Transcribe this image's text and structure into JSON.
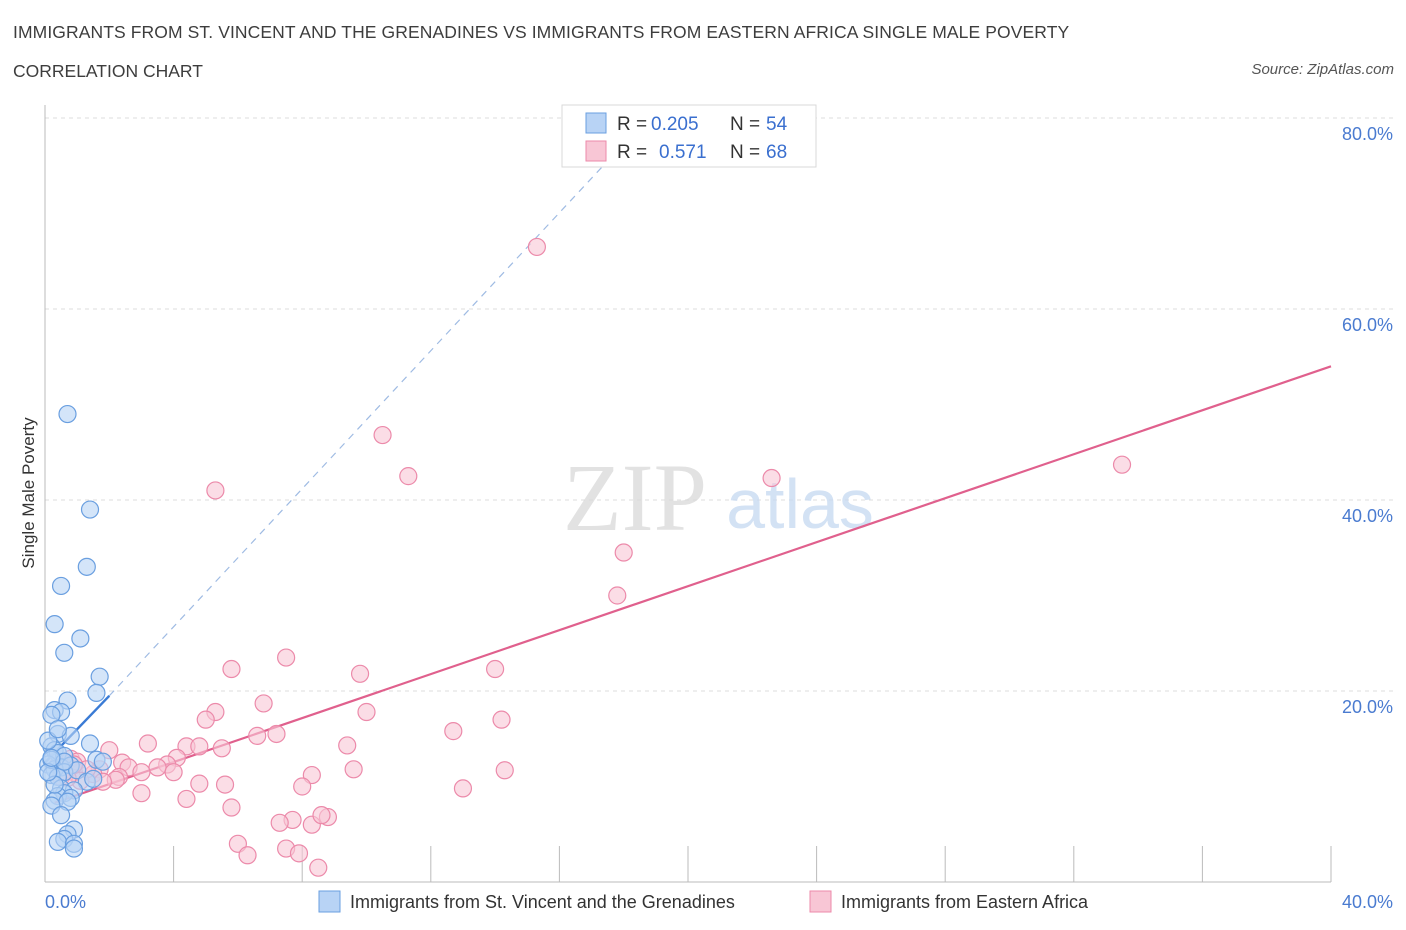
{
  "title": "IMMIGRANTS FROM ST. VINCENT AND THE GRENADINES VS IMMIGRANTS FROM EASTERN AFRICA SINGLE MALE POVERTY",
  "subtitle": "CORRELATION CHART",
  "source": "Source: ZipAtlas.com",
  "watermark": {
    "zip": "ZIP",
    "atlas": "atlas"
  },
  "legend_box": {
    "rows": [
      {
        "r_label": "R =",
        "r_value": "0.205",
        "n_label": "N =",
        "n_value": "54"
      },
      {
        "r_label": "R =",
        "r_value": "0.571",
        "n_label": "N =",
        "n_value": "68"
      }
    ]
  },
  "bottom_legend": [
    {
      "label": "Immigrants from St. Vincent and the Grenadines"
    },
    {
      "label": "Immigrants from Eastern Africa"
    }
  ],
  "colors": {
    "blue_fill": "#b8d3f5",
    "blue_stroke": "#6a9fe0",
    "blue_line": "#3a7bd5",
    "pink_fill": "#f8c6d5",
    "pink_stroke": "#ec8aaa",
    "pink_line": "#e0608d",
    "axis_tick": "#4a7bd0"
  },
  "chart_data": {
    "type": "scatter",
    "ylabel": "Single Male Poverty",
    "xlabel": "",
    "xlim": [
      0,
      40
    ],
    "ylim": [
      0,
      80
    ],
    "x_tick_labels": [
      "0.0%",
      "40.0%"
    ],
    "y_tick_labels": [
      "20.0%",
      "40.0%",
      "60.0%",
      "80.0%"
    ],
    "y_ticks": [
      20,
      40,
      60,
      80
    ],
    "grid": true,
    "series": [
      {
        "name": "Immigrants from St. Vincent and the Grenadines",
        "R": 0.205,
        "N": 54,
        "trend_solid": [
          [
            0,
            12.5
          ],
          [
            2.0,
            19.5
          ]
        ],
        "trend_dashed": [
          [
            2.0,
            19.5
          ],
          [
            17.5,
            75.5
          ]
        ],
        "points": [
          [
            0.7,
            49.0
          ],
          [
            1.4,
            39.0
          ],
          [
            1.3,
            33.0
          ],
          [
            0.5,
            31.0
          ],
          [
            0.3,
            27.0
          ],
          [
            1.1,
            25.5
          ],
          [
            0.6,
            24.0
          ],
          [
            1.7,
            21.5
          ],
          [
            1.6,
            19.8
          ],
          [
            0.7,
            19.0
          ],
          [
            0.3,
            18.0
          ],
          [
            0.5,
            17.8
          ],
          [
            0.2,
            17.5
          ],
          [
            0.4,
            15.5
          ],
          [
            0.8,
            15.3
          ],
          [
            1.4,
            14.5
          ],
          [
            0.2,
            14.2
          ],
          [
            0.3,
            13.8
          ],
          [
            0.4,
            13.5
          ],
          [
            0.6,
            13.2
          ],
          [
            1.6,
            12.8
          ],
          [
            1.8,
            12.6
          ],
          [
            0.1,
            12.3
          ],
          [
            0.5,
            12.0
          ],
          [
            0.8,
            12.2
          ],
          [
            0.3,
            11.8
          ],
          [
            0.6,
            11.5
          ],
          [
            1.0,
            11.7
          ],
          [
            0.2,
            11.2
          ],
          [
            0.4,
            11.0
          ],
          [
            1.3,
            10.5
          ],
          [
            1.5,
            10.8
          ],
          [
            0.5,
            9.8
          ],
          [
            0.9,
            9.6
          ],
          [
            0.6,
            9.3
          ],
          [
            0.4,
            9.0
          ],
          [
            0.8,
            8.8
          ],
          [
            0.3,
            8.5
          ],
          [
            0.7,
            8.4
          ],
          [
            0.2,
            8.0
          ],
          [
            0.5,
            7.0
          ],
          [
            0.9,
            5.5
          ],
          [
            0.7,
            5.0
          ],
          [
            0.6,
            4.5
          ],
          [
            0.4,
            4.2
          ],
          [
            0.9,
            4.0
          ],
          [
            0.9,
            3.5
          ],
          [
            0.1,
            14.8
          ],
          [
            0.2,
            12.8
          ],
          [
            0.3,
            10.2
          ],
          [
            0.6,
            12.6
          ],
          [
            0.1,
            11.5
          ],
          [
            0.2,
            13.0
          ],
          [
            0.4,
            16.0
          ]
        ]
      },
      {
        "name": "Immigrants from Eastern Africa",
        "R": 0.571,
        "N": 68,
        "trend_solid": [
          [
            0.3,
            8.3
          ],
          [
            40,
            54.0
          ]
        ],
        "points": [
          [
            15.3,
            66.5
          ],
          [
            10.5,
            46.8
          ],
          [
            11.3,
            42.5
          ],
          [
            5.3,
            41.0
          ],
          [
            22.6,
            42.3
          ],
          [
            33.5,
            43.7
          ],
          [
            18.0,
            34.5
          ],
          [
            17.8,
            30.0
          ],
          [
            7.5,
            23.5
          ],
          [
            5.8,
            22.3
          ],
          [
            9.8,
            21.8
          ],
          [
            14.0,
            22.3
          ],
          [
            6.8,
            18.7
          ],
          [
            5.3,
            17.8
          ],
          [
            10.0,
            17.8
          ],
          [
            5.0,
            17.0
          ],
          [
            14.2,
            17.0
          ],
          [
            12.7,
            15.8
          ],
          [
            6.6,
            15.3
          ],
          [
            7.2,
            15.5
          ],
          [
            3.2,
            14.5
          ],
          [
            4.4,
            14.2
          ],
          [
            4.8,
            14.2
          ],
          [
            9.4,
            14.3
          ],
          [
            5.5,
            14.0
          ],
          [
            2.0,
            13.8
          ],
          [
            4.1,
            13.0
          ],
          [
            2.4,
            12.5
          ],
          [
            3.8,
            12.3
          ],
          [
            2.6,
            12.0
          ],
          [
            3.5,
            12.0
          ],
          [
            1.7,
            11.8
          ],
          [
            3.0,
            11.5
          ],
          [
            4.0,
            11.5
          ],
          [
            9.6,
            11.8
          ],
          [
            14.3,
            11.7
          ],
          [
            1.5,
            11.3
          ],
          [
            0.9,
            11.5
          ],
          [
            2.3,
            11.0
          ],
          [
            2.2,
            10.7
          ],
          [
            1.8,
            10.5
          ],
          [
            8.3,
            11.2
          ],
          [
            4.8,
            10.3
          ],
          [
            5.6,
            10.2
          ],
          [
            8.0,
            10.0
          ],
          [
            13.0,
            9.8
          ],
          [
            3.0,
            9.3
          ],
          [
            4.4,
            8.7
          ],
          [
            5.8,
            7.8
          ],
          [
            7.7,
            6.5
          ],
          [
            8.8,
            6.8
          ],
          [
            7.3,
            6.2
          ],
          [
            8.3,
            6.0
          ],
          [
            8.6,
            7.0
          ],
          [
            6.0,
            4.0
          ],
          [
            6.3,
            2.8
          ],
          [
            7.5,
            3.5
          ],
          [
            7.9,
            3.0
          ],
          [
            8.5,
            1.5
          ],
          [
            0.6,
            12.5
          ],
          [
            0.8,
            12.9
          ],
          [
            1.0,
            12.6
          ],
          [
            1.3,
            11.8
          ],
          [
            0.5,
            11.0
          ],
          [
            1.1,
            10.6
          ],
          [
            0.4,
            12.2
          ],
          [
            0.7,
            10.9
          ],
          [
            0.9,
            12.3
          ]
        ]
      }
    ]
  }
}
